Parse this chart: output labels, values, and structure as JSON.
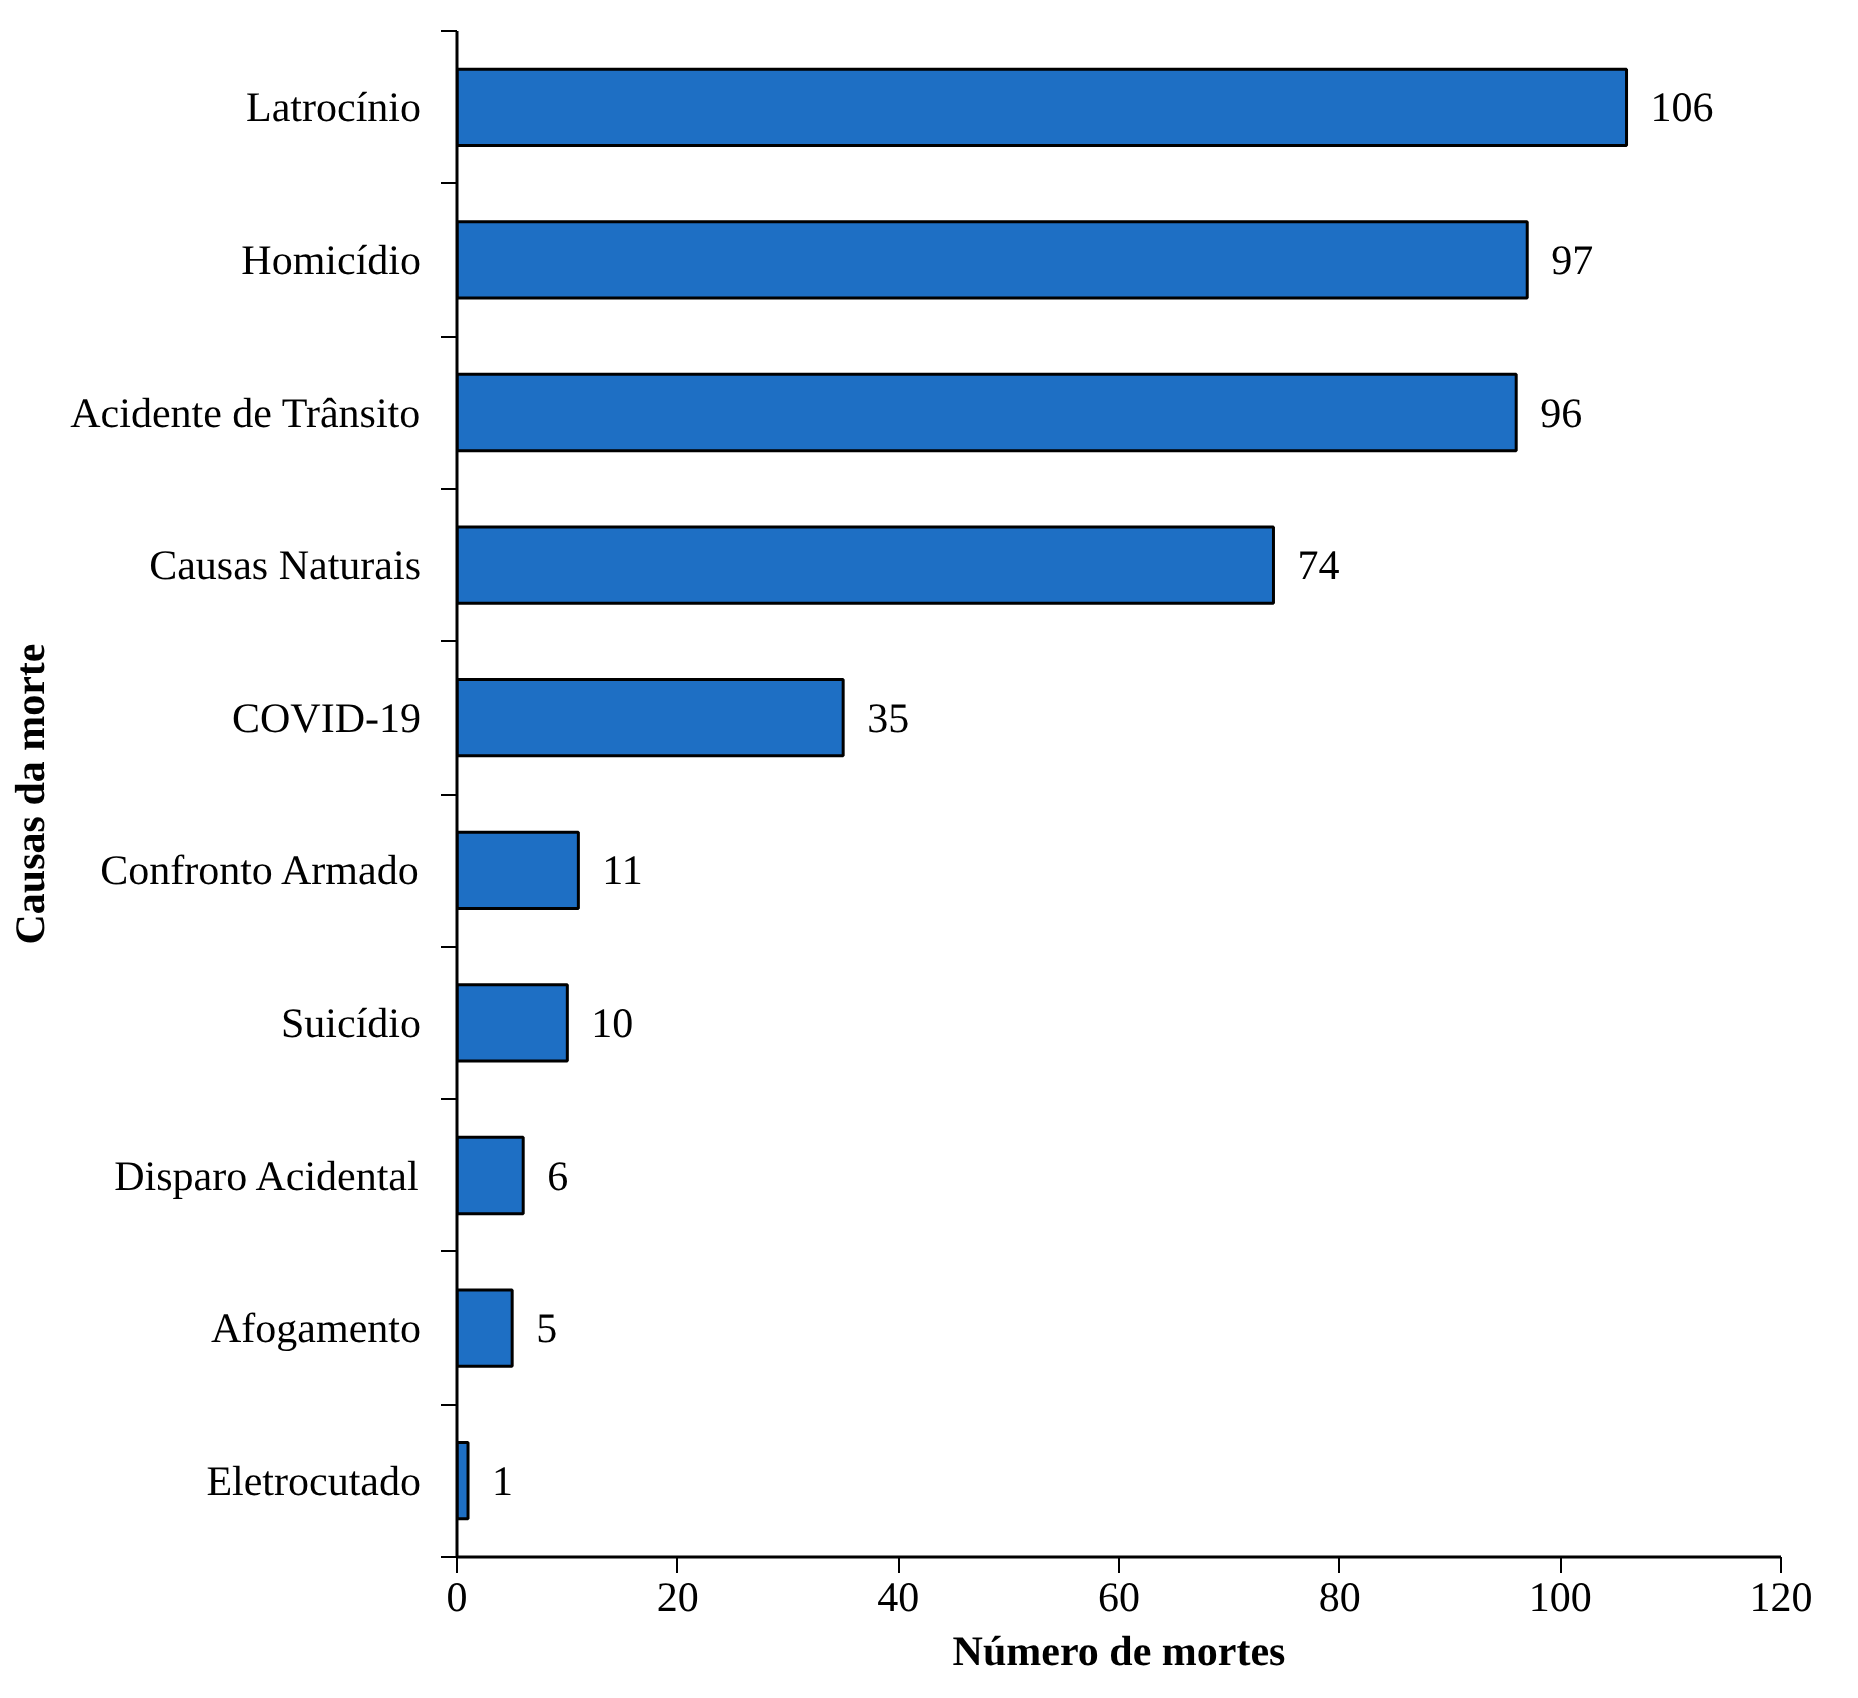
{
  "chart_data": {
    "type": "bar",
    "orientation": "horizontal",
    "xlabel": "Número de mortes",
    "ylabel": "Causas da morte",
    "categories": [
      "Latrocínio",
      "Homicídio",
      "Acidente de Trânsito",
      "Causas Naturais",
      "COVID-19",
      "Confronto Armado",
      "Suicídio",
      "Disparo Acidental",
      "Afogamento",
      "Eletrocutado"
    ],
    "values": [
      106,
      97,
      96,
      74,
      35,
      11,
      10,
      6,
      5,
      1
    ],
    "color": "#1e6fc4",
    "xlim": [
      0,
      120
    ],
    "xticks": [
      0,
      20,
      40,
      60,
      80,
      100,
      120
    ],
    "data_labels": true,
    "grid": false
  }
}
